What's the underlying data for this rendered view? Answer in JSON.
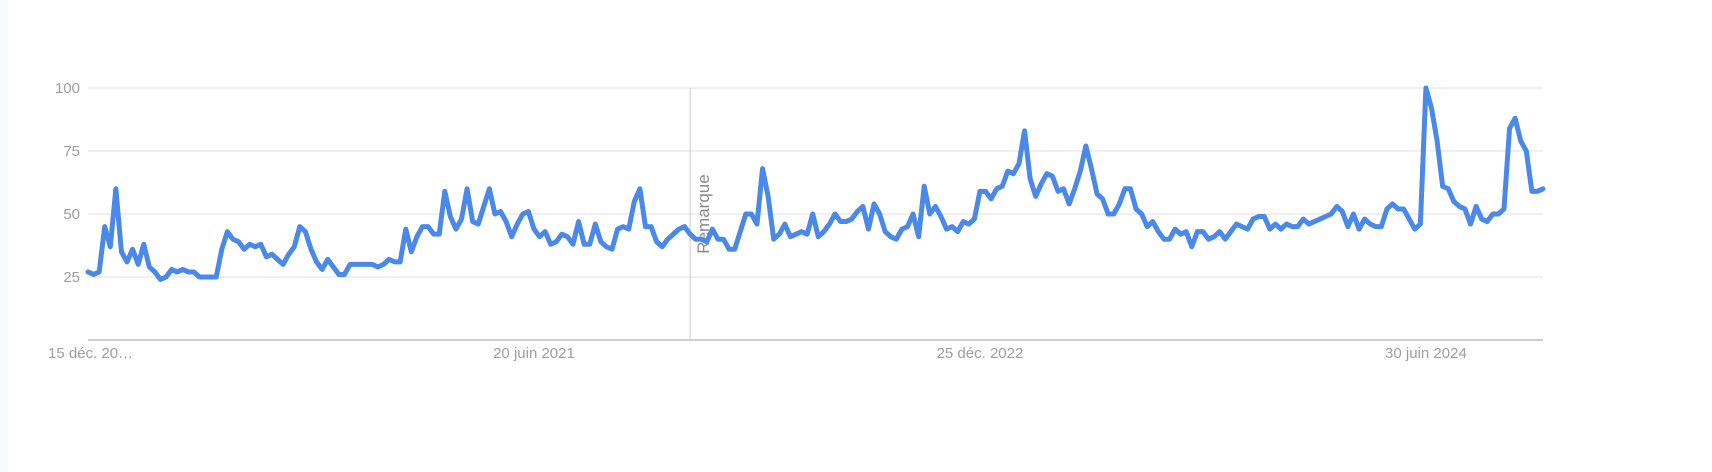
{
  "chart_data": {
    "type": "line",
    "title": "",
    "xlabel": "",
    "ylabel": "",
    "ylim": [
      0,
      100
    ],
    "grid": true,
    "y_ticks": [
      25,
      50,
      75,
      100
    ],
    "x_ticks": [
      {
        "label": "15 déc. 20…",
        "week": 0
      },
      {
        "label": "20 juin 2021",
        "week": 80
      },
      {
        "label": "25 déc. 2022",
        "week": 160
      },
      {
        "label": "30 juin 2024",
        "week": 240
      }
    ],
    "annotation": {
      "label": "Remarque",
      "week": 108
    },
    "color": "#4a89e8",
    "series": [
      {
        "values": [
          27,
          26,
          27,
          45,
          37,
          60,
          35,
          31,
          36,
          30,
          38,
          29,
          27,
          24,
          25,
          28,
          27,
          28,
          27,
          27,
          25,
          25,
          25,
          25,
          36,
          43,
          40,
          39,
          36,
          38,
          37,
          38,
          33,
          34,
          32,
          30,
          34,
          37,
          45,
          43,
          36,
          31,
          28,
          32,
          29,
          26,
          26,
          30,
          30,
          30,
          30,
          30,
          29,
          30,
          32,
          31,
          31,
          44,
          35,
          41,
          45,
          45,
          42,
          42,
          59,
          49,
          44,
          48,
          60,
          47,
          46,
          53,
          60,
          50,
          51,
          47,
          41,
          46,
          50,
          51,
          44,
          41,
          43,
          38,
          39,
          42,
          41,
          38,
          47,
          38,
          38,
          46,
          39,
          37,
          36,
          44,
          45,
          44,
          55,
          60,
          45,
          45,
          39,
          37,
          40,
          42,
          44,
          45,
          42,
          40,
          40,
          39,
          44,
          40,
          40,
          36,
          36,
          43,
          50,
          50,
          46,
          68,
          57,
          40,
          42,
          46,
          41,
          42,
          43,
          42,
          50,
          41,
          43,
          46,
          50,
          47,
          47,
          48,
          51,
          53,
          44,
          54,
          50,
          43,
          41,
          40,
          44,
          45,
          50,
          41,
          61,
          50,
          53,
          49,
          44,
          45,
          43,
          47,
          46,
          48,
          59,
          59,
          56,
          60,
          61,
          67,
          66,
          70,
          83,
          64,
          57,
          62,
          66,
          65,
          59,
          60,
          54,
          60,
          67,
          77,
          68,
          58,
          56,
          50,
          50,
          54,
          60,
          60,
          52,
          50,
          45,
          47,
          43,
          40,
          40,
          44,
          42,
          43,
          37,
          43,
          43,
          40,
          41,
          43,
          40,
          43,
          46,
          45,
          44,
          48,
          49,
          49,
          44,
          46,
          44,
          46,
          45,
          45,
          48,
          46,
          47,
          48,
          49,
          50,
          53,
          51,
          45,
          50,
          44,
          48,
          46,
          45,
          45,
          52,
          54,
          52,
          52,
          48,
          44,
          46,
          100,
          92,
          79,
          61,
          60,
          55,
          53,
          52,
          46,
          53,
          48,
          47,
          50,
          50,
          52,
          84,
          88,
          79,
          75,
          59,
          59,
          60
        ]
      }
    ]
  }
}
